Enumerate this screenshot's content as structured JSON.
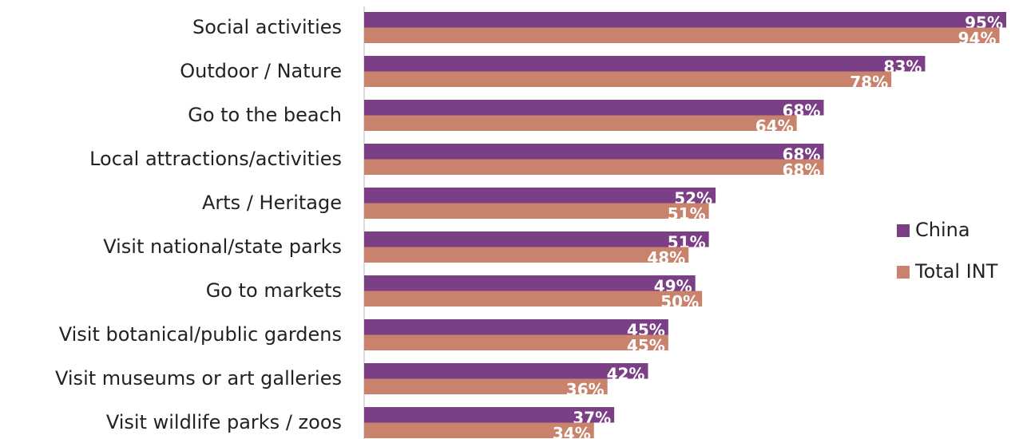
{
  "chart_data": {
    "type": "bar",
    "orientation": "horizontal",
    "categories": [
      "Social activities",
      "Outdoor / Nature",
      "Go to the beach",
      "Local attractions/activities",
      "Arts / Heritage",
      "Visit national/state parks",
      "Go to markets",
      "Visit botanical/public gardens",
      "Visit museums or art galleries",
      "Visit wildlife parks / zoos"
    ],
    "series": [
      {
        "name": "China",
        "color": "#7b3f86",
        "values": [
          95,
          83,
          68,
          68,
          52,
          51,
          49,
          45,
          42,
          37
        ],
        "value_labels": [
          "95%",
          "83%",
          "68%",
          "68%",
          "52%",
          "51%",
          "49%",
          "45%",
          "42%",
          "37%"
        ]
      },
      {
        "name": "Total INT",
        "color": "#c9836c",
        "values": [
          94,
          78,
          64,
          68,
          51,
          48,
          50,
          45,
          36,
          34
        ],
        "value_labels": [
          "94%",
          "78%",
          "64%",
          "68%",
          "51%",
          "48%",
          "50%",
          "45%",
          "36%",
          "34%"
        ]
      }
    ],
    "legend": "right"
  }
}
